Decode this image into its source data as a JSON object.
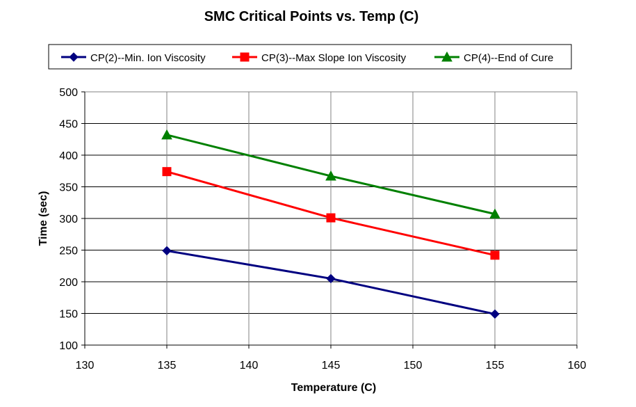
{
  "chart_data": {
    "type": "line",
    "title": "SMC Critical Points vs. Temp (C)",
    "xlabel": "Temperature (C)",
    "ylabel": "Time (sec)",
    "xlim": [
      130,
      160
    ],
    "ylim": [
      100,
      500
    ],
    "x_ticks": [
      130,
      135,
      140,
      145,
      150,
      155,
      160
    ],
    "y_ticks": [
      100,
      150,
      200,
      250,
      300,
      350,
      400,
      450,
      500
    ],
    "grid": true,
    "legend_position": "top",
    "series": [
      {
        "name": "CP(2)--Min. Ion Viscosity",
        "color": "#000080",
        "marker": "diamond",
        "x": [
          135,
          145,
          155
        ],
        "y": [
          249,
          205,
          149
        ]
      },
      {
        "name": "CP(3)--Max Slope Ion Viscosity",
        "color": "#ff0000",
        "marker": "square",
        "x": [
          135,
          145,
          155
        ],
        "y": [
          374,
          301,
          242
        ]
      },
      {
        "name": "CP(4)--End of Cure",
        "color": "#008000",
        "marker": "triangle",
        "x": [
          135,
          145,
          155
        ],
        "y": [
          432,
          367,
          307
        ]
      }
    ]
  }
}
